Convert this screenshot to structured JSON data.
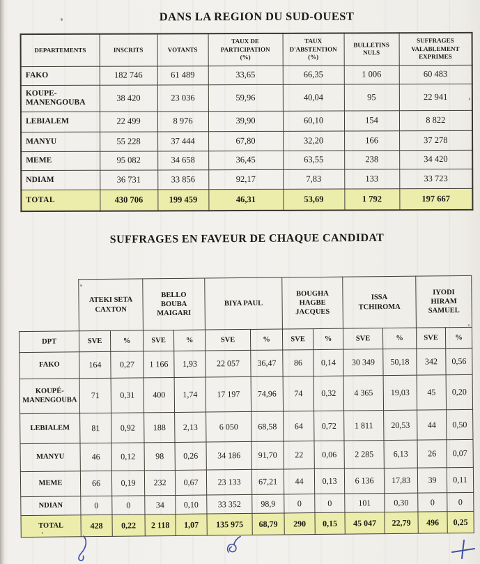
{
  "colors": {
    "paper": "#f2f0ec",
    "highlight": "#ecedaa",
    "pen_ink": "#3e50a4",
    "border": "#403d34"
  },
  "titles": {
    "region": "DANS LA REGION DU SUD-OUEST",
    "candidates": "SUFFRAGES EN FAVEUR DE CHAQUE CANDIDAT"
  },
  "region_table": {
    "headers": [
      "DEPARTEMENTS",
      "INSCRITS",
      "VOTANTS",
      "TAUX DE\nPARTICIPATION\n(%)",
      "TAUX\nD'ABSTENTION\n(%)",
      "BULLETINS\nNULS",
      "SUFFRAGES\nVALABLEMENT\nEXPRIMES"
    ],
    "rows": [
      [
        "FAKO",
        "182 746",
        "61 489",
        "33,65",
        "66,35",
        "1 006",
        "60 483"
      ],
      [
        "KOUPE-MANENGOUBA",
        "38 420",
        "23 036",
        "59,96",
        "40,04",
        "95",
        "22 941"
      ],
      [
        "LEBIALEM",
        "22 499",
        "8 976",
        "39,90",
        "60,10",
        "154",
        "8 822"
      ],
      [
        "MANYU",
        "55 228",
        "37 444",
        "67,80",
        "32,20",
        "166",
        "37 278"
      ],
      [
        "MEME",
        "95 082",
        "34 658",
        "36,45",
        "63,55",
        "238",
        "34 420"
      ],
      [
        "NDIAM",
        "36 731",
        "33 856",
        "92,17",
        "7,83",
        "133",
        "33 723"
      ]
    ],
    "total_row": [
      "TOTAL",
      "430 706",
      "199 459",
      "46,31",
      "53,69",
      "1 792",
      "197 667"
    ]
  },
  "candidates_table": {
    "candidates": [
      "ATEKI SETA\nCAXTON",
      "BELLO\nBOUBA\nMAIGARI",
      "BIYA PAUL",
      "BOUGHA\nHAGBE\nJACQUES",
      "ISSA\nTCHIROMA",
      "IYODI\nHIRAM\nSAMUEL"
    ],
    "subheaders": [
      "DPT",
      "SVE",
      "%",
      "SVE",
      "%",
      "SVE",
      "%",
      "SVE",
      "%",
      "SVE",
      "%",
      "SVE",
      "%"
    ],
    "rows": [
      [
        "FAKO",
        "164",
        "0,27",
        "1 166",
        "1,93",
        "22 057",
        "36,47",
        "86",
        "0,14",
        "30 349",
        "50,18",
        "342",
        "0,56"
      ],
      [
        "KOUPÉ-\nMANENGOUBA",
        "71",
        "0,31",
        "400",
        "1,74",
        "17 197",
        "74,96",
        "74",
        "0,32",
        "4 365",
        "19,03",
        "45",
        "0,20"
      ],
      [
        "LEBIALEM",
        "81",
        "0,92",
        "188",
        "2,13",
        "6 050",
        "68,58",
        "64",
        "0,72",
        "1 811",
        "20,53",
        "44",
        "0,50"
      ],
      [
        "MANYU",
        "46",
        "0,12",
        "98",
        "0,26",
        "34 186",
        "91,70",
        "22",
        "0,06",
        "2 285",
        "6,13",
        "26",
        "0,07"
      ],
      [
        "MEME",
        "66",
        "0,19",
        "232",
        "0,67",
        "23 133",
        "67,21",
        "44",
        "0,13",
        "6 136",
        "17,83",
        "39",
        "0,11"
      ],
      [
        "NDIAN",
        "0",
        "0",
        "34",
        "0,10",
        "33 352",
        "98,9",
        "0",
        "0",
        "101",
        "0,30",
        "0",
        "0"
      ]
    ],
    "total_row": [
      "TOTAL",
      "428",
      "0,22",
      "2 118",
      "1,07",
      "135 975",
      "68,79",
      "290",
      "0,15",
      "45 047",
      "22,79",
      "496",
      "0,25"
    ]
  },
  "annotations": {
    "pen_marks": [
      "handwritten loop stroke",
      "handwritten scribble",
      "handwritten cross"
    ]
  }
}
